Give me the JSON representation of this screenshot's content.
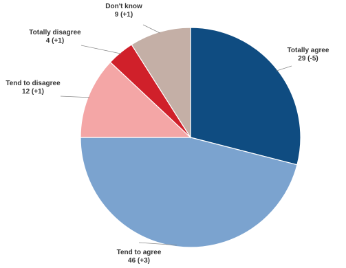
{
  "chart_data": {
    "type": "pie",
    "start_angle_deg": 90,
    "direction": "clockwise",
    "slices": [
      {
        "label": "Totally agree",
        "value": 29,
        "change": "(-5)",
        "color": "#0f4c81"
      },
      {
        "label": "Tend to agree",
        "value": 46,
        "change": "(+3)",
        "color": "#7ba3cf"
      },
      {
        "label": "Tend to disagree",
        "value": 12,
        "change": "(+1)",
        "color": "#f4a6a6"
      },
      {
        "label": "Totally disagree",
        "value": 4,
        "change": "(+1)",
        "color": "#d0202a"
      },
      {
        "label": "Don't know",
        "value": 9,
        "change": "(+1)",
        "color": "#c4afa6"
      }
    ]
  }
}
